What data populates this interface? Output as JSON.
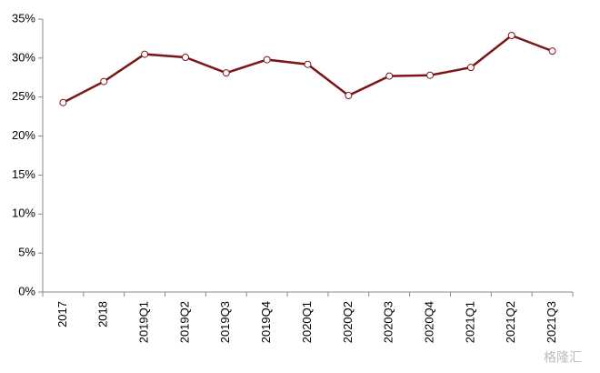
{
  "chart_data": {
    "type": "line",
    "categories": [
      "2017",
      "2018",
      "2019Q1",
      "2019Q2",
      "2019Q3",
      "2019Q4",
      "2020Q1",
      "2020Q2",
      "2020Q3",
      "2020Q4",
      "2021Q1",
      "2021Q2",
      "2021Q3"
    ],
    "values": [
      24.3,
      27.0,
      30.5,
      30.1,
      28.1,
      29.8,
      29.2,
      25.2,
      27.7,
      27.8,
      28.8,
      32.9,
      30.9
    ],
    "color": "#7b1616",
    "ylim": [
      0,
      35
    ],
    "yticks": [
      {
        "value": 0,
        "label": "0%"
      },
      {
        "value": 5,
        "label": "5%"
      },
      {
        "value": 10,
        "label": "10%"
      },
      {
        "value": 15,
        "label": "15%"
      },
      {
        "value": 20,
        "label": "20%"
      },
      {
        "value": 25,
        "label": "25%"
      },
      {
        "value": 30,
        "label": "30%"
      },
      {
        "value": 35,
        "label": "35%"
      }
    ],
    "grid": false,
    "watermark": "格隆汇"
  }
}
